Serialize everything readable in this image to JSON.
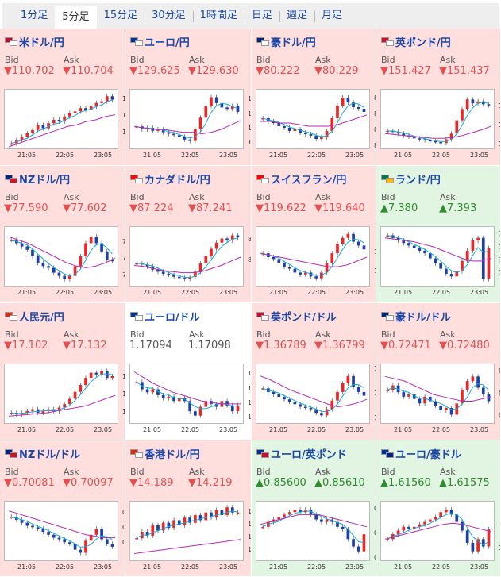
{
  "tabs": [
    {
      "label": "1分足",
      "active": false
    },
    {
      "label": "5分足",
      "active": true
    },
    {
      "label": "15分足",
      "active": false
    },
    {
      "label": "30分足",
      "active": false
    },
    {
      "label": "1時間足",
      "active": false
    },
    {
      "label": "日足",
      "active": false
    },
    {
      "label": "週足",
      "active": false
    },
    {
      "label": "月足",
      "active": false
    }
  ],
  "bid_label": "Bid",
  "ask_label": "Ask",
  "x_ticks": [
    "21:05",
    "22:05",
    "23:05"
  ],
  "colors": {
    "down_bg": "#ffdede",
    "up_bg": "#e2f4e2",
    "down_text": "#e45050",
    "up_text": "#2e8b2e",
    "link": "#1a47a8"
  },
  "pairs": [
    {
      "name": "米ドル/円",
      "bid": "▼110.702",
      "ask": "▼110.704",
      "dir": "down",
      "flag1": "#bf0a30",
      "flag2": "#ffffff",
      "ticks": [
        "110.7",
        "110.6",
        "110.5"
      ],
      "chart_data": {
        "type": "line",
        "y": [
          110.44,
          110.46,
          110.48,
          110.5,
          110.52,
          110.55,
          110.53,
          110.56,
          110.58,
          110.57,
          110.6,
          110.62,
          110.63,
          110.65,
          110.64,
          110.66,
          110.68,
          110.69,
          110.72,
          110.7
        ],
        "ma": [
          110.42,
          110.44,
          110.46,
          110.48,
          110.5,
          110.52,
          110.54,
          110.55,
          110.57,
          110.58,
          110.6,
          110.61
        ],
        "ylim": [
          110.42,
          110.74
        ]
      }
    },
    {
      "name": "ユーロ/円",
      "bid": "▼129.625",
      "ask": "▼129.630",
      "dir": "down",
      "flag1": "#003399",
      "flag2": "#ffffff",
      "ticks": [
        "129.7",
        "129.6",
        "129.5",
        "129.4"
      ],
      "chart_data": {
        "type": "line",
        "y": [
          129.52,
          129.5,
          129.51,
          129.49,
          129.5,
          129.48,
          129.47,
          129.46,
          129.45,
          129.43,
          129.42,
          129.5,
          129.58,
          129.66,
          129.72,
          129.68,
          129.65,
          129.64,
          129.66,
          129.62
        ],
        "ma": [
          129.52,
          129.51,
          129.5,
          129.5,
          129.49,
          129.48,
          129.48,
          129.47,
          129.48,
          129.5,
          129.53,
          129.56
        ],
        "ylim": [
          129.38,
          129.75
        ]
      }
    },
    {
      "name": "豪ドル/円",
      "bid": "▼80.222",
      "ask": "▼80.229",
      "dir": "down",
      "flag1": "#00247d",
      "flag2": "#ffffff",
      "ticks": [
        "80.3",
        "80.2",
        "80.1",
        "80"
      ],
      "chart_data": {
        "type": "line",
        "y": [
          80.18,
          80.16,
          80.15,
          80.13,
          80.12,
          80.1,
          80.11,
          80.09,
          80.08,
          80.07,
          80.05,
          80.06,
          80.1,
          80.18,
          80.26,
          80.31,
          80.28,
          80.25,
          80.24,
          80.22
        ],
        "ma": [
          80.16,
          80.16,
          80.15,
          80.15,
          80.14,
          80.13,
          80.13,
          80.13,
          80.14,
          80.16,
          80.18,
          80.2
        ],
        "ylim": [
          80.0,
          80.34
        ]
      }
    },
    {
      "name": "英ポンド/円",
      "bid": "▼151.427",
      "ask": "▼151.437",
      "dir": "down",
      "flag1": "#c8102e",
      "flag2": "#ffffff",
      "ticks": [
        "151.4",
        "151.2",
        "151"
      ],
      "chart_data": {
        "type": "line",
        "y": [
          151.15,
          151.14,
          151.12,
          151.1,
          151.09,
          151.07,
          151.06,
          151.05,
          151.04,
          151.03,
          151.02,
          151.06,
          151.12,
          151.26,
          151.38,
          151.48,
          151.44,
          151.46,
          151.43,
          151.42
        ],
        "ma": [
          151.12,
          151.11,
          151.1,
          151.09,
          151.08,
          151.07,
          151.07,
          151.08,
          151.1,
          151.13,
          151.16,
          151.2
        ],
        "ylim": [
          150.98,
          151.55
        ]
      }
    },
    {
      "name": "NZドル/円",
      "bid": "▼77.590",
      "ask": "▼77.602",
      "dir": "down",
      "flag1": "#00247d",
      "flag2": "#cc142b",
      "ticks": [
        "77.7",
        "77.6",
        "77.5"
      ],
      "chart_data": {
        "type": "line",
        "y": [
          77.72,
          77.7,
          77.68,
          77.66,
          77.62,
          77.58,
          77.56,
          77.55,
          77.52,
          77.5,
          77.48,
          77.5,
          77.56,
          77.62,
          77.7,
          77.74,
          77.7,
          77.65,
          77.6,
          77.59
        ],
        "ma": [
          77.74,
          77.72,
          77.7,
          77.67,
          77.64,
          77.61,
          77.58,
          77.56,
          77.55,
          77.56,
          77.58,
          77.61
        ],
        "ylim": [
          77.45,
          77.78
        ]
      }
    },
    {
      "name": "カナダドル/円",
      "bid": "▼87.224",
      "ask": "▼87.241",
      "dir": "down",
      "flag1": "#ff0000",
      "flag2": "#ffffff",
      "ticks": [
        "87.2",
        "87"
      ],
      "chart_data": {
        "type": "line",
        "y": [
          86.98,
          86.97,
          86.95,
          86.92,
          86.9,
          86.88,
          86.87,
          86.85,
          86.84,
          86.83,
          86.85,
          86.9,
          86.98,
          87.05,
          87.12,
          87.18,
          87.22,
          87.2,
          87.25,
          87.23
        ],
        "ma": [
          86.96,
          86.95,
          86.93,
          86.91,
          86.9,
          86.89,
          86.89,
          86.9,
          86.93,
          86.96,
          87.0,
          87.04
        ],
        "ylim": [
          86.78,
          87.3
        ]
      }
    },
    {
      "name": "スイスフラン/円",
      "bid": "▼119.622",
      "ask": "▼119.640",
      "dir": "down",
      "flag1": "#ff0000",
      "flag2": "#ffffff",
      "ticks": [
        "119.6",
        "119.5"
      ],
      "chart_data": {
        "type": "line",
        "y": [
          119.6,
          119.58,
          119.57,
          119.55,
          119.53,
          119.52,
          119.5,
          119.49,
          119.5,
          119.48,
          119.47,
          119.5,
          119.55,
          119.6,
          119.65,
          119.68,
          119.7,
          119.66,
          119.64,
          119.62
        ],
        "ma": [
          119.6,
          119.59,
          119.58,
          119.57,
          119.56,
          119.55,
          119.54,
          119.53,
          119.53,
          119.54,
          119.56,
          119.58
        ],
        "ylim": [
          119.44,
          119.72
        ]
      }
    },
    {
      "name": "ランド/円",
      "bid": "▲7.380",
      "ask": "▲7.393",
      "dir": "up",
      "flag1": "#007a4d",
      "flag2": "#ffb612",
      "ticks": [
        "7.39",
        "7.38",
        "7.37",
        "7.36"
      ],
      "chart_data": {
        "type": "line",
        "y": [
          7.39,
          7.388,
          7.386,
          7.384,
          7.382,
          7.38,
          7.378,
          7.376,
          7.372,
          7.368,
          7.364,
          7.36,
          7.358,
          7.362,
          7.37,
          7.378,
          7.386,
          7.388,
          7.356,
          7.38
        ],
        "ma": [
          7.388,
          7.387,
          7.386,
          7.385,
          7.383,
          7.381,
          7.378,
          7.375,
          7.372,
          7.37,
          7.37,
          7.372
        ],
        "ylim": [
          7.352,
          7.394
        ]
      }
    },
    {
      "name": "人民元/円",
      "bid": "▼17.102",
      "ask": "▼17.132",
      "dir": "down",
      "flag1": "#de2910",
      "flag2": "#ffffff",
      "ticks": [
        "17.1",
        "17.08",
        "17.06"
      ],
      "chart_data": {
        "type": "line",
        "y": [
          17.06,
          17.058,
          17.06,
          17.062,
          17.064,
          17.06,
          17.062,
          17.064,
          17.062,
          17.066,
          17.07,
          17.076,
          17.084,
          17.092,
          17.1,
          17.106,
          17.104,
          17.108,
          17.1,
          17.102
        ],
        "ma": [
          17.056,
          17.057,
          17.058,
          17.059,
          17.06,
          17.062,
          17.064,
          17.066,
          17.068,
          17.072,
          17.076,
          17.08
        ],
        "ylim": [
          17.05,
          17.112
        ]
      }
    },
    {
      "name": "ユーロ/ドル",
      "bid": "1.17094",
      "ask": "1.17098",
      "dir": "flat",
      "flag1": "#003399",
      "flag2": "#ffffff",
      "ticks": [
        "1.173",
        "1.172",
        "1.171",
        "1.17"
      ],
      "chart_data": {
        "type": "line",
        "y": [
          1.1725,
          1.172,
          1.1718,
          1.172,
          1.1716,
          1.1714,
          1.1715,
          1.1712,
          1.1714,
          1.1712,
          1.1705,
          1.1702,
          1.1708,
          1.1712,
          1.171,
          1.1708,
          1.1712,
          1.1709,
          1.1705,
          1.1709
        ],
        "ma": [
          1.1732,
          1.1728,
          1.1724,
          1.1721,
          1.1718,
          1.1716,
          1.1714,
          1.1712,
          1.1711,
          1.171,
          1.171,
          1.171
        ],
        "ylim": [
          1.1698,
          1.1735
        ]
      }
    },
    {
      "name": "英ポンド/ドル",
      "bid": "▼1.36789",
      "ask": "▼1.36799",
      "dir": "down",
      "flag1": "#c8102e",
      "flag2": "#ffffff",
      "ticks": [
        "1.37",
        "1.368",
        "1.366"
      ],
      "chart_data": {
        "type": "line",
        "y": [
          1.3685,
          1.3682,
          1.368,
          1.3678,
          1.3676,
          1.3674,
          1.3672,
          1.367,
          1.3669,
          1.3668,
          1.3665,
          1.3663,
          1.3668,
          1.3675,
          1.3682,
          1.3689,
          1.3695,
          1.3686,
          1.3682,
          1.3679
        ],
        "ma": [
          1.3695,
          1.3692,
          1.3688,
          1.3684,
          1.3681,
          1.3678,
          1.3675,
          1.3672,
          1.367,
          1.3671,
          1.3673,
          1.3676
        ],
        "ylim": [
          1.3658,
          1.3702
        ]
      }
    },
    {
      "name": "豪ドル/ドル",
      "bid": "▼0.72471",
      "ask": "▼0.72480",
      "dir": "down",
      "flag1": "#00247d",
      "flag2": "#ffffff",
      "ticks": [
        "0.726",
        "0.725",
        "0.724"
      ],
      "chart_data": {
        "type": "line",
        "y": [
          0.7252,
          0.7254,
          0.7251,
          0.7249,
          0.725,
          0.7248,
          0.7246,
          0.7249,
          0.7247,
          0.7245,
          0.7243,
          0.7244,
          0.7241,
          0.7246,
          0.7252,
          0.7256,
          0.7258,
          0.7253,
          0.725,
          0.7247
        ],
        "ma": [
          0.7258,
          0.7257,
          0.7256,
          0.7254,
          0.7252,
          0.725,
          0.7249,
          0.7248,
          0.7247,
          0.7247,
          0.7248,
          0.7249
        ],
        "ylim": [
          0.7238,
          0.7262
        ]
      }
    },
    {
      "name": "NZドル/ドル",
      "bid": "▼0.70081",
      "ask": "▼0.70097",
      "dir": "down",
      "flag1": "#00247d",
      "flag2": "#cc142b",
      "ticks": [
        "0.703",
        "0.702",
        "0.701"
      ],
      "chart_data": {
        "type": "line",
        "y": [
          0.7028,
          0.7026,
          0.7024,
          0.7022,
          0.7021,
          0.702,
          0.7018,
          0.7016,
          0.7014,
          0.7013,
          0.7011,
          0.701,
          0.7006,
          0.7004,
          0.7012,
          0.7016,
          0.702,
          0.7013,
          0.701,
          0.7008
        ],
        "ma": [
          0.7032,
          0.703,
          0.7028,
          0.7026,
          0.7024,
          0.7022,
          0.702,
          0.7018,
          0.7016,
          0.7015,
          0.7014,
          0.7014
        ],
        "ylim": [
          0.7,
          0.7036
        ]
      }
    },
    {
      "name": "香港ドル/円",
      "bid": "▼14.189",
      "ask": "▼14.219",
      "dir": "down",
      "flag1": "#de2910",
      "flag2": "#ffffff",
      "ticks": [
        "14.2",
        "14.19",
        "14.18",
        "14.17"
      ],
      "chart_data": {
        "type": "line",
        "y": [
          14.18,
          14.185,
          14.182,
          14.19,
          14.186,
          14.192,
          14.188,
          14.194,
          14.19,
          14.196,
          14.192,
          14.198,
          14.194,
          14.2,
          14.196,
          14.202,
          14.198,
          14.204,
          14.2,
          14.2
        ],
        "ma": [
          14.168,
          14.169,
          14.17,
          14.171,
          14.172,
          14.173,
          14.174,
          14.175,
          14.176,
          14.177,
          14.178,
          14.179
        ],
        "ylim": [
          14.164,
          14.206
        ]
      }
    },
    {
      "name": "ユーロ/英ポンド",
      "bid": "▲0.85600",
      "ask": "▲0.85610",
      "dir": "up",
      "flag1": "#003399",
      "flag2": "#c8102e",
      "ticks": [
        "0.857",
        "0.856",
        "0.855"
      ],
      "chart_data": {
        "type": "line",
        "y": [
          0.8563,
          0.8565,
          0.8566,
          0.8567,
          0.8568,
          0.8569,
          0.857,
          0.8569,
          0.857,
          0.8568,
          0.8566,
          0.8565,
          0.8566,
          0.8565,
          0.8563,
          0.8562,
          0.8558,
          0.8555,
          0.8553,
          0.856
        ],
        "ma": [
          0.8564,
          0.8565,
          0.8566,
          0.8567,
          0.8568,
          0.8568,
          0.8568,
          0.8567,
          0.8566,
          0.8565,
          0.8564,
          0.8563
        ],
        "ylim": [
          0.855,
          0.8572
        ]
      }
    },
    {
      "name": "ユーロ/豪ドル",
      "bid": "▲1.61560",
      "ask": "▲1.61575",
      "dir": "up",
      "flag1": "#003399",
      "flag2": "#00247d",
      "ticks": [
        "1.616",
        "1.614"
      ],
      "chart_data": {
        "type": "line",
        "y": [
          1.6148,
          1.6152,
          1.6155,
          1.6158,
          1.6156,
          1.6158,
          1.616,
          1.6162,
          1.6164,
          1.6166,
          1.617,
          1.6172,
          1.6168,
          1.6162,
          1.6155,
          1.6145,
          1.6138,
          1.6148,
          1.6142,
          1.6156
        ],
        "ma": [
          1.6148,
          1.615,
          1.6152,
          1.6154,
          1.6156,
          1.6158,
          1.616,
          1.6161,
          1.616,
          1.6158,
          1.6156,
          1.6154
        ],
        "ylim": [
          1.6132,
          1.6176
        ]
      }
    }
  ]
}
